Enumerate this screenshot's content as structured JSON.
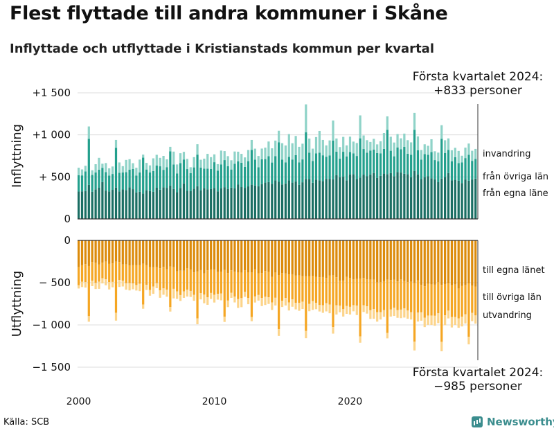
{
  "header": {
    "title": "Flest flyttade till andra kommuner i Skåne",
    "subtitle": "Inflyttade och utflyttade i Kristianstads kommun per kvartal"
  },
  "footer": {
    "source": "Källa: SCB",
    "brand": "Newsworthy"
  },
  "chart_data": {
    "type": "bar",
    "stacked": true,
    "x_start_year": 2000,
    "x_tick_labels": [
      "2000",
      "2010",
      "2020"
    ],
    "panels": [
      {
        "name": "inflyttning",
        "ylabel": "Inflyttning",
        "y_tick_labels": [
          "0",
          "+ 500",
          "+1 000",
          "+1 500"
        ],
        "ylim": [
          0,
          1500
        ],
        "callout": [
          "Första kvartalet 2024:",
          "+833 personer"
        ],
        "colors": [
          "#1a6e63",
          "#23a08d",
          "#8fd3c8"
        ],
        "series": [
          {
            "name": "från egna läne",
            "values": [
              326,
              328,
              332,
              405,
              324,
              352,
              371,
              438,
              337,
              327,
              346,
              373,
              328,
              350,
              344,
              376,
              354,
              316,
              322,
              302,
              341,
              331,
              322,
              371,
              348,
              376,
              370,
              396,
              356,
              317,
              369,
              422,
              334,
              330,
              360,
              389,
              341,
              366,
              351,
              357,
              367,
              328,
              363,
              378,
              355,
              372,
              363,
              408,
              379,
              370,
              387,
              407,
              398,
              388,
              413,
              432,
              438,
              418,
              458,
              441,
              410,
              422,
              460,
              432,
              446,
              406,
              436,
              475,
              475,
              430,
              468,
              458,
              450,
              477,
              477,
              473,
              522,
              496,
              502,
              459,
              530,
              531,
              474,
              491,
              527,
              507,
              529,
              546,
              487,
              513,
              539,
              533,
              545,
              508,
              557,
              554,
              537,
              531,
              496,
              569,
              530,
              474,
              497,
              507,
              484,
              471,
              437,
              479,
              498,
              546,
              458,
              465,
              454,
              427,
              469,
              454,
              469,
              480
            ]
          },
          {
            "name": "från övriga län",
            "values": [
              195,
              190,
              234,
              548,
              199,
              201,
              215,
              170,
              220,
              189,
              189,
              472,
              222,
              202,
              212,
              211,
              240,
              201,
              232,
              427,
              247,
              222,
              248,
              265,
              278,
              208,
              246,
              409,
              292,
              223,
              295,
              285,
              259,
              215,
              253,
              376,
              270,
              233,
              247,
              238,
              308,
              247,
              286,
              322,
              272,
              216,
              294,
              276,
              290,
              249,
              300,
              413,
              307,
              227,
              296,
              280,
              309,
              253,
              288,
              470,
              295,
              250,
              279,
              275,
              314,
              266,
              272,
              555,
              314,
              260,
              311,
              331,
              307,
              263,
              279,
              460,
              279,
              222,
              297,
              285,
              267,
              248,
              275,
              468,
              305,
              282,
              285,
              280,
              297,
              268,
              294,
              527,
              266,
              237,
              294,
              276,
              320,
              244,
              267,
              491,
              286,
              231,
              275,
              256,
              311,
              229,
              247,
              475,
              287,
              276,
              228,
              270,
              211,
              245,
              255,
              310,
              222,
              233
            ]
          },
          {
            "name": "invandring",
            "values": [
              88,
              71,
              66,
              147,
              56,
              98,
              141,
              49,
              108,
              86,
              89,
              95,
              122,
              76,
              146,
              124,
              69,
              92,
              152,
              36,
              79,
              84,
              151,
              127,
              101,
              166,
              93,
              53,
              153,
              108,
              118,
              91,
              121,
              70,
              122,
              124,
              93,
              118,
              176,
              140,
              93,
              77,
              164,
              107,
              120,
              110,
              145,
              116,
              105,
              113,
              133,
              120,
              131,
              134,
              128,
              136,
              174,
              169,
              186,
              138,
              196,
              202,
              271,
              193,
              227,
              186,
              187,
              333,
              167,
              146,
              195,
              258,
              183,
              135,
              178,
              238,
              156,
              137,
              177,
              131,
              182,
              141,
              154,
              273,
              161,
              148,
              102,
              127,
              103,
              143,
              189,
              160,
              167,
              164,
              159,
              129,
              158,
              162,
              148,
              202,
              166,
              115,
              116,
              107,
              153,
              105,
              105,
              161,
              151,
              136,
              131,
              111,
              144,
              80,
              124,
              133,
              120,
              120
            ]
          }
        ]
      },
      {
        "name": "utflyttning",
        "ylabel": "Utflyttning",
        "y_tick_labels": [
          "0",
          "− 500",
          "−1 000",
          "−1 500"
        ],
        "ylim": [
          -1500,
          0
        ],
        "callout": [
          "Första kvartalet 2024:",
          "−985 personer"
        ],
        "colors": [
          "#dc8b0b",
          "#f5a623",
          "#fcd48a"
        ],
        "series": [
          {
            "name": "till egna länet",
            "values": [
              -317,
              -294,
              -280,
              -303,
              -257,
              -265,
              -286,
              -264,
              -251,
              -278,
              -271,
              -252,
              -255,
              -284,
              -284,
              -298,
              -291,
              -291,
              -294,
              -276,
              -294,
              -317,
              -316,
              -317,
              -329,
              -313,
              -343,
              -310,
              -317,
              -366,
              -358,
              -359,
              -328,
              -344,
              -378,
              -368,
              -352,
              -392,
              -353,
              -344,
              -346,
              -372,
              -369,
              -349,
              -386,
              -354,
              -371,
              -377,
              -382,
              -353,
              -377,
              -380,
              -343,
              -389,
              -386,
              -362,
              -374,
              -433,
              -377,
              -410,
              -386,
              -392,
              -403,
              -401,
              -417,
              -416,
              -424,
              -425,
              -422,
              -418,
              -430,
              -437,
              -434,
              -443,
              -414,
              -413,
              -436,
              -476,
              -475,
              -431,
              -445,
              -462,
              -456,
              -451,
              -444,
              -462,
              -465,
              -464,
              -497,
              -495,
              -483,
              -464,
              -469,
              -466,
              -486,
              -462,
              -480,
              -493,
              -489,
              -505,
              -471,
              -527,
              -542,
              -513,
              -520,
              -524,
              -495,
              -526,
              -516,
              -509,
              -530,
              -522,
              -569,
              -537,
              -528,
              -508,
              -536,
              -545
            ]
          },
          {
            "name": "till övriga län",
            "values": [
              -214,
              -194,
              -212,
              -593,
              -221,
              -237,
              -203,
              -184,
              -210,
              -214,
              -220,
              -604,
              -213,
              -194,
              -223,
              -208,
              -219,
              -237,
              -218,
              -482,
              -232,
              -270,
              -229,
              -190,
              -261,
              -255,
              -241,
              -479,
              -256,
              -238,
              -289,
              -244,
              -256,
              -254,
              -267,
              -555,
              -271,
              -250,
              -321,
              -278,
              -297,
              -260,
              -260,
              -554,
              -326,
              -265,
              -294,
              -318,
              -301,
              -256,
              -304,
              -526,
              -320,
              -257,
              -295,
              -305,
              -299,
              -302,
              -302,
              -639,
              -327,
              -290,
              -332,
              -296,
              -321,
              -324,
              -301,
              -647,
              -330,
              -300,
              -308,
              -328,
              -334,
              -299,
              -346,
              -613,
              -332,
              -297,
              -339,
              -344,
              -341,
              -304,
              -316,
              -684,
              -323,
              -317,
              -361,
              -349,
              -352,
              -354,
              -342,
              -631,
              -349,
              -331,
              -338,
              -357,
              -323,
              -337,
              -361,
              -693,
              -383,
              -324,
              -373,
              -376,
              -369,
              -368,
              -368,
              -674,
              -370,
              -322,
              -377,
              -385,
              -353,
              -367,
              -345,
              -633,
              -322,
              -343
            ]
          },
          {
            "name": "utvandring",
            "values": [
              -38,
              -64,
              -66,
              -66,
              -63,
              -73,
              -84,
              -61,
              -70,
              -88,
              -64,
              -93,
              -83,
              -67,
              -76,
              -86,
              -68,
              -65,
              -88,
              -51,
              -61,
              -67,
              -87,
              -58,
              -89,
              -75,
              -82,
              -53,
              -113,
              -88,
              -69,
              -77,
              -80,
              -71,
              -69,
              -69,
              -75,
              -102,
              -88,
              -71,
              -92,
              -69,
              -80,
              -62,
              -77,
              -61,
              -69,
              -104,
              -107,
              -59,
              -74,
              -50,
              -72,
              -66,
              -96,
              -97,
              -79,
              -88,
              -91,
              -81,
              -75,
              -88,
              -94,
              -88,
              -78,
              -93,
              -87,
              -85,
              -86,
              -104,
              -76,
              -76,
              -89,
              -98,
              -102,
              -77,
              -109,
              -77,
              -87,
              -94,
              -91,
              -73,
              -111,
              -76,
              -80,
              -87,
              -103,
              -114,
              -112,
              -87,
              -79,
              -64,
              -83,
              -97,
              -92,
              -101,
              -110,
              -97,
              -86,
              -104,
              -106,
              -99,
              -111,
              -110,
              -111,
              -118,
              -116,
              -112,
              -118,
              -92,
              -123,
              -93,
              -112,
              -114,
              -110,
              -89,
              -97,
              -97
            ]
          }
        ]
      }
    ]
  }
}
